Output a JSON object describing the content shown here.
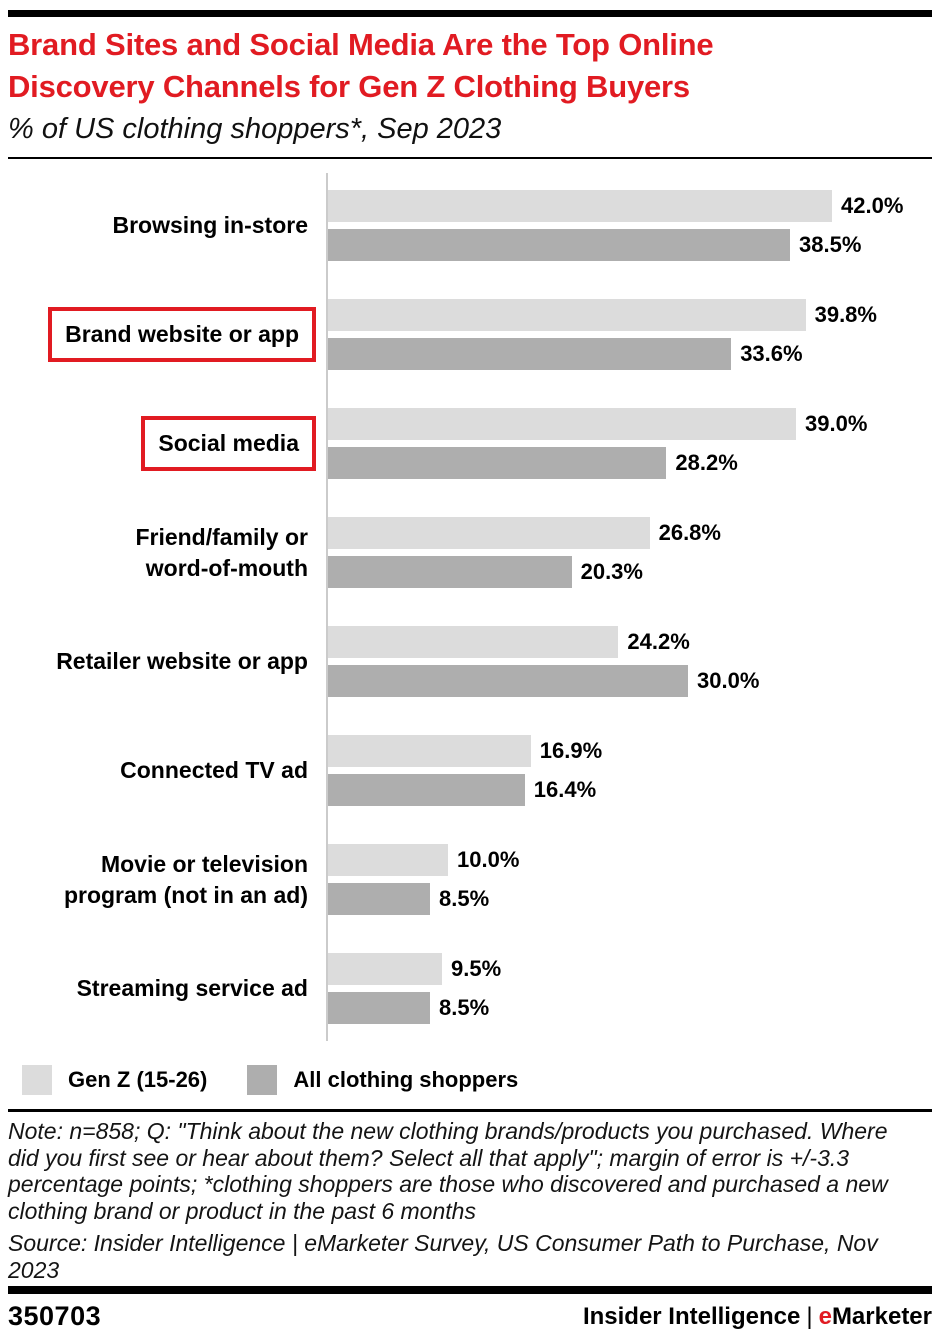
{
  "header": {
    "title": "Brand Sites and Social Media Are the Top Online\nDiscovery Channels for Gen Z Clothing Buyers",
    "subtitle": "% of US clothing shoppers*, Sep 2023"
  },
  "chart_data": {
    "type": "bar",
    "orientation": "horizontal",
    "title": "Brand Sites and Social Media Are the Top Online Discovery Channels for Gen Z Clothing Buyers",
    "subtitle": "% of US clothing shoppers*, Sep 2023",
    "categories": [
      "Browsing in-store",
      "Brand website or app",
      "Social media",
      "Friend/family or\nword-of-mouth",
      "Retailer website or app",
      "Connected TV ad",
      "Movie or television\nprogram (not in an ad)",
      "Streaming service ad"
    ],
    "highlighted": [
      false,
      true,
      true,
      false,
      false,
      false,
      false,
      false
    ],
    "series": [
      {
        "name": "Gen Z (15-26)",
        "color": "#dcdcdc",
        "values": [
          42.0,
          39.8,
          39.0,
          26.8,
          24.2,
          16.9,
          10.0,
          9.5
        ],
        "labels": [
          "42.0%",
          "39.8%",
          "39.0%",
          "26.8%",
          "24.2%",
          "16.9%",
          "10.0%",
          "9.5%"
        ]
      },
      {
        "name": "All clothing shoppers",
        "color": "#aeaeae",
        "values": [
          38.5,
          33.6,
          28.2,
          20.3,
          30.0,
          16.4,
          8.5,
          8.5
        ],
        "labels": [
          "38.5%",
          "33.6%",
          "28.2%",
          "20.3%",
          "30.0%",
          "16.4%",
          "8.5%",
          "8.5%"
        ]
      }
    ],
    "value_suffix": "%",
    "xlim": [
      0,
      50
    ],
    "grid": false,
    "legend_position": "bottom",
    "axis_color": "#cbcbcb"
  },
  "legend": {
    "items": [
      {
        "label": "Gen Z (15-26)",
        "color": "#dcdcdc"
      },
      {
        "label": "All clothing shoppers",
        "color": "#aeaeae"
      }
    ]
  },
  "footnote": {
    "note": "Note: n=858; Q: \"Think about the new clothing brands/products you purchased. Where\ndid you first see or hear about them? Select all that apply\"; margin of error is +/-3.3\npercentage points; *clothing shoppers are those who discovered and purchased a new\nclothing brand or product in the past 6 months",
    "source": "Source: Insider Intelligence | eMarketer Survey, US Consumer Path to Purchase, Nov\n2023"
  },
  "footer": {
    "chart_id": "350703",
    "brand_name": "Insider Intelligence",
    "brand_separator": "|",
    "brand_e": "e",
    "brand_rest": "Marketer"
  },
  "colors": {
    "accent_red": "#e11b22",
    "bar_light": "#dcdcdc",
    "bar_dark": "#aeaeae",
    "axis": "#cbcbcb",
    "rule_black": "#000000"
  }
}
